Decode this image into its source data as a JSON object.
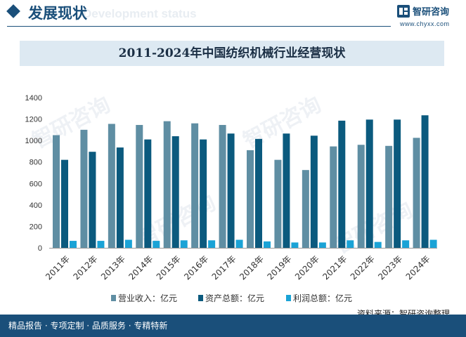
{
  "header": {
    "title": "发展现状",
    "subtitle_en": "Development status",
    "brand_name": "智研咨询",
    "brand_url": "www.chyxx.com"
  },
  "footer": {
    "text": "精品报告 · 专项定制 · 品质服务 · 专精特新",
    "source": "资料来源：智研咨询整理"
  },
  "watermark": {
    "text": "智研咨询"
  },
  "colors": {
    "accent": "#1a4f7a",
    "revenue": "#5f8ea3",
    "assets": "#0b5a7e",
    "profit": "#1aa3d6"
  },
  "chart_data": {
    "type": "bar",
    "title": "2011-2024年中国纺织机械行业经营现状",
    "categories": [
      "2011年",
      "2012年",
      "2013年",
      "2014年",
      "2015年",
      "2016年",
      "2017年",
      "2018年",
      "2019年",
      "2020年",
      "2021年",
      "2022年",
      "2023年",
      "2024年"
    ],
    "series": [
      {
        "name": "营业收入：亿元",
        "color": "#5f8ea3",
        "values": [
          1050,
          1100,
          1155,
          1145,
          1180,
          1160,
          1145,
          910,
          820,
          725,
          945,
          960,
          950,
          1025
        ]
      },
      {
        "name": "资产总额：亿元",
        "color": "#0b5a7e",
        "values": [
          820,
          895,
          935,
          1010,
          1040,
          1010,
          1065,
          1015,
          1065,
          1045,
          1185,
          1195,
          1195,
          1235
        ]
      },
      {
        "name": "利润总额：亿元",
        "color": "#1aa3d6",
        "values": [
          65,
          65,
          75,
          65,
          70,
          70,
          75,
          60,
          50,
          50,
          70,
          55,
          70,
          75
        ]
      }
    ],
    "yticks": [
      0,
      200,
      400,
      600,
      800,
      1000,
      1200,
      1400
    ],
    "ylim": [
      0,
      1400
    ],
    "xlabel": "",
    "ylabel": "",
    "grid": false,
    "legend": "bottom"
  }
}
